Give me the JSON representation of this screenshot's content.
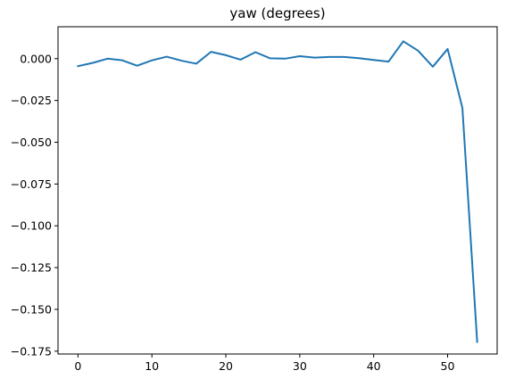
{
  "chart_data": {
    "type": "line",
    "title": "yaw (degrees)",
    "xlabel": "",
    "ylabel": "",
    "xlim": [
      -2.7,
      56.7
    ],
    "ylim": [
      -0.1767,
      0.0191
    ],
    "grid": false,
    "x_ticks": [
      0,
      10,
      20,
      30,
      40,
      50
    ],
    "x_tick_labels": [
      "0",
      "10",
      "20",
      "30",
      "40",
      "50"
    ],
    "y_ticks": [
      0.0,
      -0.025,
      -0.05,
      -0.075,
      -0.1,
      -0.125,
      -0.15,
      -0.175
    ],
    "y_tick_labels": [
      "0.000",
      "−0.025",
      "−0.050",
      "−0.075",
      "−0.100",
      "−0.125",
      "−0.150",
      "−0.175"
    ],
    "series": [
      {
        "color": "#1f77b4",
        "x": [
          0,
          2,
          4,
          6,
          8,
          10,
          12,
          14,
          16,
          18,
          20,
          22,
          24,
          26,
          28,
          30,
          32,
          34,
          36,
          38,
          40,
          42,
          44,
          46,
          48,
          50,
          52,
          54
        ],
        "y": [
          -0.0045,
          -0.0025,
          0.0,
          -0.001,
          -0.0042,
          -0.001,
          0.0012,
          -0.0012,
          -0.003,
          0.0041,
          0.0021,
          -0.0006,
          0.0039,
          0.0002,
          0.0,
          0.0015,
          0.0006,
          0.001,
          0.001,
          0.0003,
          -0.0008,
          -0.0018,
          0.0104,
          0.0048,
          -0.0048,
          0.0058,
          -0.0295,
          -0.1695
        ]
      }
    ]
  }
}
